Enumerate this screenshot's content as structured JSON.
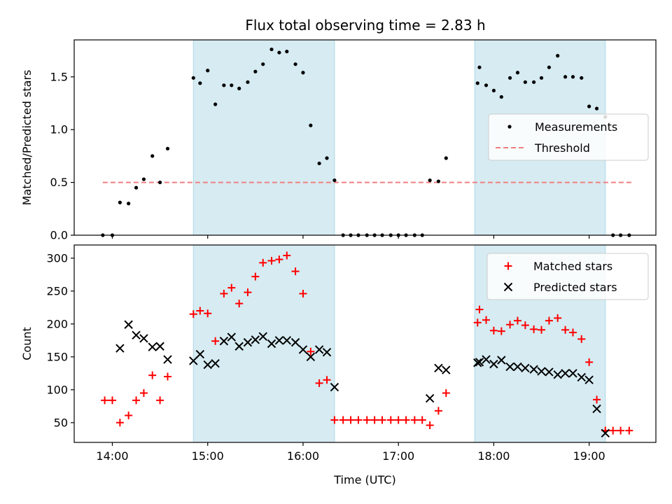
{
  "chart_data": [
    {
      "type": "scatter",
      "title": "Flux total observing time = 2.83 h",
      "ylabel": "Matched/Predicted stars",
      "xlabel": "",
      "xlim": [
        13.6,
        19.7
      ],
      "ylim": [
        0,
        1.85
      ],
      "yticks": [
        0,
        0.5,
        1.0,
        1.5
      ],
      "ytick_labels": [
        "0.0",
        "0.5",
        "1.0",
        "1.5"
      ],
      "grid": false,
      "legend_position": "center-right",
      "shaded_spans": [
        [
          14.85,
          16.33
        ],
        [
          17.8,
          19.17
        ]
      ],
      "shade_color": "#add8e6",
      "threshold": {
        "name": "Threshold",
        "value": 0.5,
        "x_range": [
          13.9,
          19.45
        ],
        "color": "#f08080"
      },
      "series": [
        {
          "name": "Measurements",
          "color": "#000000",
          "marker": "dot",
          "x": [
            13.9,
            14.0,
            14.08,
            14.17,
            14.25,
            14.33,
            14.42,
            14.5,
            14.58,
            14.85,
            14.92,
            15.0,
            15.08,
            15.17,
            15.25,
            15.33,
            15.42,
            15.5,
            15.58,
            15.67,
            15.75,
            15.83,
            15.92,
            16.0,
            16.08,
            16.17,
            16.25,
            16.33,
            16.42,
            16.5,
            16.58,
            16.67,
            16.75,
            16.83,
            16.92,
            17.0,
            17.08,
            17.17,
            17.25,
            17.33,
            17.42,
            17.5,
            17.83,
            17.85,
            17.92,
            18.0,
            18.08,
            18.17,
            18.25,
            18.33,
            18.42,
            18.5,
            18.58,
            18.67,
            18.75,
            18.83,
            18.92,
            19.0,
            19.08,
            19.17,
            19.25,
            19.33,
            19.42
          ],
          "y": [
            0,
            0,
            0.31,
            0.3,
            0.45,
            0.53,
            0.75,
            0.5,
            0.82,
            1.49,
            1.44,
            1.56,
            1.24,
            1.42,
            1.42,
            1.39,
            1.45,
            1.55,
            1.62,
            1.76,
            1.73,
            1.74,
            1.62,
            1.54,
            1.04,
            0.68,
            0.73,
            0.52,
            0,
            0,
            0,
            0,
            0,
            0,
            0,
            0,
            0,
            0,
            0,
            0.52,
            0.51,
            0.73,
            1.44,
            1.59,
            1.42,
            1.37,
            1.31,
            1.49,
            1.54,
            1.45,
            1.45,
            1.49,
            1.59,
            1.7,
            1.5,
            1.5,
            1.49,
            1.22,
            1.2,
            1.12,
            0,
            0,
            0
          ]
        }
      ]
    },
    {
      "type": "scatter",
      "title": "",
      "ylabel": "Count",
      "xlabel": "Time (UTC)",
      "xlim": [
        13.6,
        19.7
      ],
      "ylim": [
        20,
        320
      ],
      "yticks": [
        50,
        100,
        150,
        200,
        250,
        300
      ],
      "ytick_labels": [
        "50",
        "100",
        "150",
        "200",
        "250",
        "300"
      ],
      "xticks": [
        14,
        15,
        16,
        17,
        18,
        19
      ],
      "xtick_labels": [
        "14:00",
        "15:00",
        "16:00",
        "17:00",
        "18:00",
        "19:00"
      ],
      "grid": false,
      "legend_position": "top-right",
      "shaded_spans": [
        [
          14.85,
          16.33
        ],
        [
          17.8,
          19.17
        ]
      ],
      "shade_color": "#add8e6",
      "series": [
        {
          "name": "Matched stars",
          "color": "#ff0000",
          "marker": "plus",
          "x": [
            13.92,
            14.0,
            14.08,
            14.17,
            14.25,
            14.33,
            14.42,
            14.5,
            14.58,
            14.85,
            14.92,
            15.0,
            15.08,
            15.17,
            15.25,
            15.33,
            15.42,
            15.5,
            15.58,
            15.67,
            15.75,
            15.83,
            15.92,
            16.0,
            16.08,
            16.17,
            16.25,
            16.33,
            16.42,
            16.5,
            16.58,
            16.67,
            16.75,
            16.83,
            16.92,
            17.0,
            17.08,
            17.17,
            17.25,
            17.33,
            17.42,
            17.5,
            17.83,
            17.85,
            17.92,
            18.0,
            18.08,
            18.17,
            18.25,
            18.33,
            18.42,
            18.5,
            18.58,
            18.67,
            18.75,
            18.83,
            18.92,
            19.0,
            19.08,
            19.17,
            19.25,
            19.33,
            19.42
          ],
          "y": [
            84,
            84,
            50,
            61,
            84,
            95,
            122,
            84,
            120,
            215,
            220,
            216,
            174,
            246,
            255,
            231,
            248,
            272,
            293,
            296,
            298,
            304,
            280,
            246,
            158,
            110,
            115,
            54,
            54,
            54,
            54,
            54,
            54,
            54,
            54,
            54,
            54,
            54,
            54,
            46,
            68,
            95,
            202,
            222,
            206,
            190,
            189,
            199,
            205,
            198,
            192,
            191,
            205,
            209,
            191,
            187,
            177,
            142,
            85,
            38,
            38,
            38,
            38
          ]
        },
        {
          "name": "Predicted stars",
          "color": "#000000",
          "marker": "x",
          "x": [
            14.08,
            14.17,
            14.25,
            14.33,
            14.42,
            14.5,
            14.58,
            14.85,
            14.92,
            15.0,
            15.08,
            15.17,
            15.25,
            15.33,
            15.42,
            15.5,
            15.58,
            15.67,
            15.75,
            15.83,
            15.92,
            16.0,
            16.08,
            16.17,
            16.25,
            16.33,
            17.33,
            17.42,
            17.5,
            17.83,
            17.85,
            17.92,
            18.0,
            18.08,
            18.17,
            18.25,
            18.33,
            18.42,
            18.5,
            18.58,
            18.67,
            18.75,
            18.83,
            18.92,
            19.0,
            19.08,
            19.17
          ],
          "y": [
            163,
            199,
            183,
            178,
            165,
            166,
            146,
            144,
            154,
            138,
            140,
            174,
            180,
            166,
            172,
            176,
            181,
            170,
            175,
            175,
            172,
            161,
            150,
            161,
            157,
            104,
            87,
            133,
            130,
            141,
            142,
            146,
            139,
            145,
            135,
            135,
            133,
            131,
            128,
            127,
            123,
            125,
            125,
            119,
            115,
            71,
            34
          ]
        }
      ]
    }
  ]
}
